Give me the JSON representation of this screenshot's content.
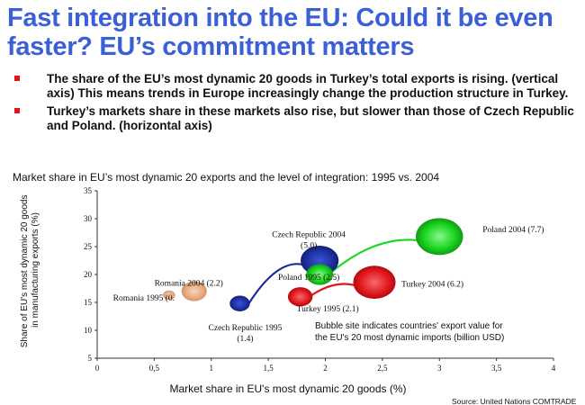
{
  "slide": {
    "title": "Fast integration into the EU: Could it be even faster? EU’s commitment matters",
    "bullets": [
      "The share of the EU’s most dynamic 20 goods in Turkey’s total exports is rising. (vertical axis) This means trends in Europe increasingly change the production structure in Turkey.",
      "Turkey’s markets share in these markets also rise, but slower than those of Czech Republic and Poland. (horizontal axis)"
    ]
  },
  "chart_data": {
    "type": "scatter",
    "title": "Market share in EU’s most dynamic 20 exports and the level of integration: 1995 vs. 2004",
    "xlabel": "Market share in EU's most dynamic 20 goods (%)",
    "ylabel": "Share of EU's most dynamic 20 goods in manufacturing exports (%)",
    "xlim": [
      0,
      4
    ],
    "ylim": [
      5,
      35
    ],
    "xticks": [
      "0",
      "0,5",
      "1",
      "1,5",
      "2",
      "2,5",
      "3",
      "3,5",
      "4"
    ],
    "yticks": [
      "5",
      "10",
      "15",
      "20",
      "25",
      "30",
      "35"
    ],
    "grid": false,
    "series": [
      {
        "label": "Romania 1995 (0.",
        "x": 0.63,
        "y": 16.3,
        "size": 0.5,
        "color": "#e7a57b"
      },
      {
        "label": "Romania 2004 (2.2)",
        "x": 0.85,
        "y": 17.0,
        "size": 2.2,
        "color": "#e7a57b"
      },
      {
        "label": "Czech Republic 1995 (1.4)",
        "x": 1.25,
        "y": 14.8,
        "size": 1.4,
        "color": "#1b2c99"
      },
      {
        "label": "Czech Republic 2004 (5.0)",
        "x": 1.95,
        "y": 22.5,
        "size": 5.0,
        "color": "#1b2c99"
      },
      {
        "label": "Poland 1995 (2.5)",
        "x": 1.95,
        "y": 20.0,
        "size": 2.5,
        "color": "#1ad61f"
      },
      {
        "label": "Poland 2004 (7.7)",
        "x": 3.0,
        "y": 26.8,
        "size": 7.7,
        "color": "#1ad61f"
      },
      {
        "label": "Turkey 1995 (2.1)",
        "x": 1.78,
        "y": 16.0,
        "size": 2.1,
        "color": "#e0161b"
      },
      {
        "label": "Turkey 2004 (6.2)",
        "x": 2.43,
        "y": 18.6,
        "size": 6.2,
        "color": "#e0161b"
      }
    ],
    "note": [
      "Bubble site indicates countries' export value for",
      "the EU's 20 most dynamic imports (billion USD)"
    ],
    "source": "Source: United Nations COMTRADE"
  }
}
